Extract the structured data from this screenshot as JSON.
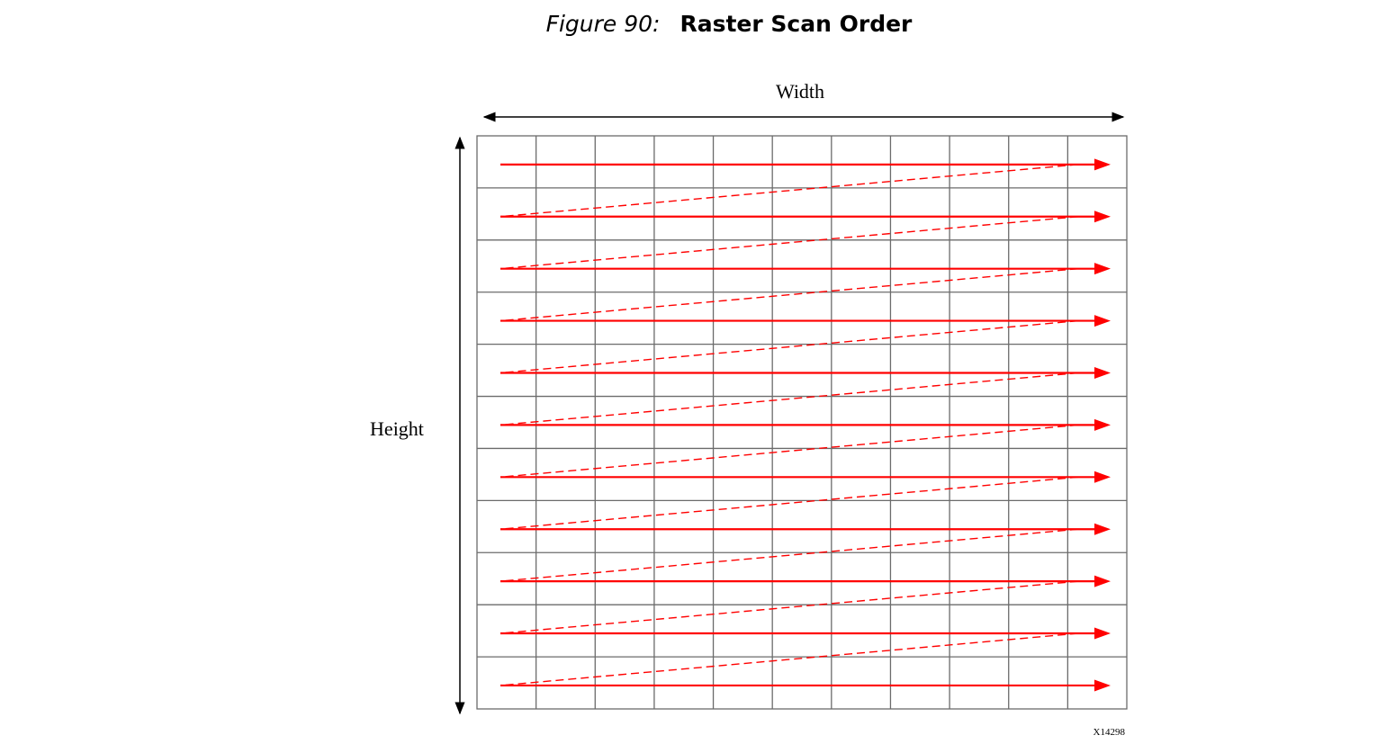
{
  "figure": {
    "prefix": "Figure 90:",
    "title": "Raster Scan Order"
  },
  "diagram": {
    "width_label": "Width",
    "height_label": "Height",
    "figure_id": "X14298",
    "grid_columns": 11,
    "grid_rows": 11,
    "colors": {
      "grid": "#6b6b6b",
      "scan": "#ff0000",
      "dimension_arrows": "#000000"
    }
  }
}
